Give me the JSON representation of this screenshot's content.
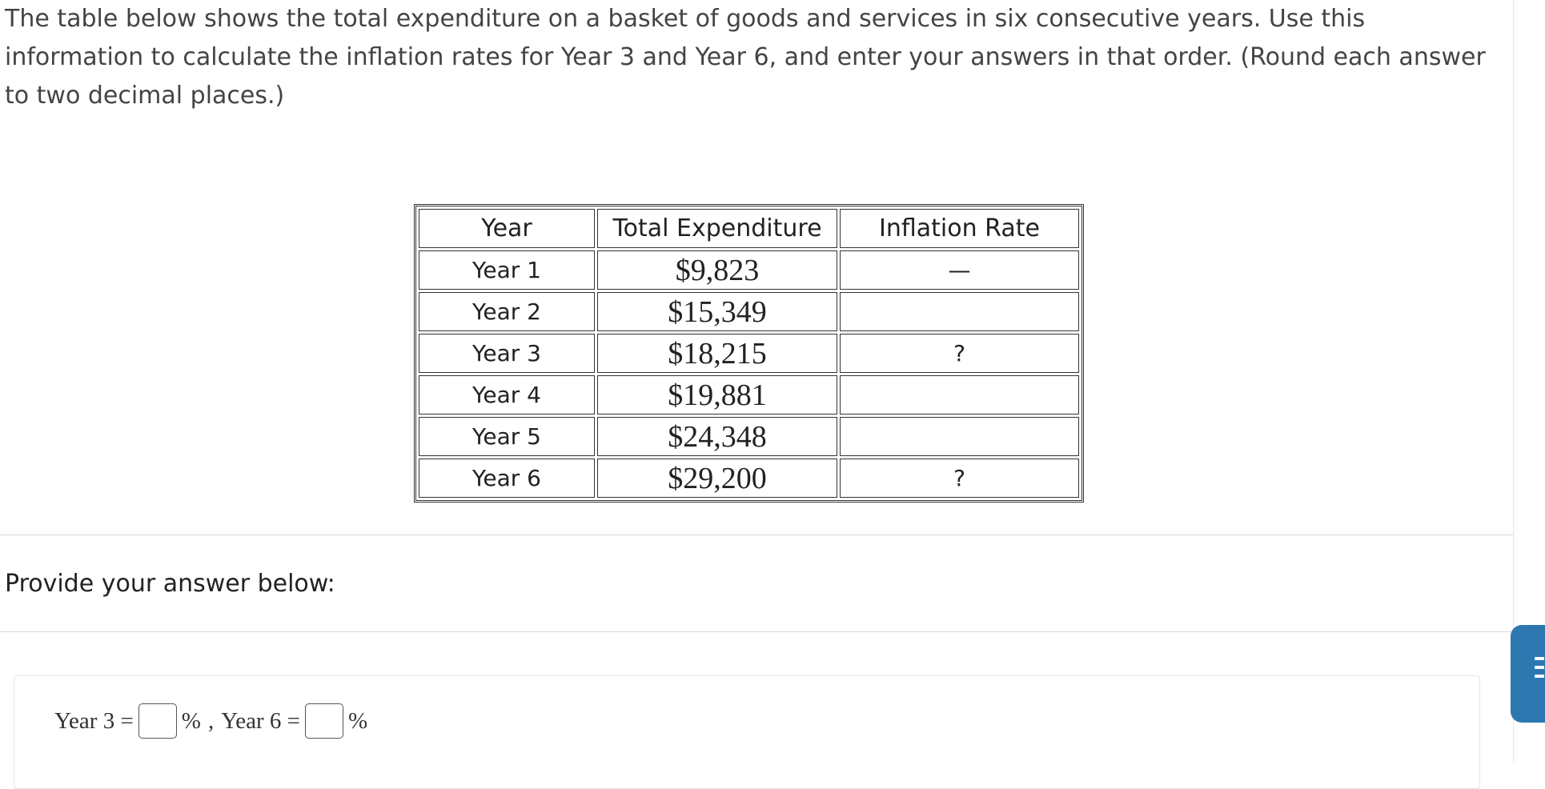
{
  "question": {
    "text": "The table below shows the total expenditure on a basket of goods and services in six consecutive years. Use this information to calculate the inflation rates for Year 3 and Year 6, and enter your answers in that order. (Round each answer to two decimal places.)"
  },
  "table": {
    "headers": [
      "Year",
      "Total Expenditure",
      "Inflation Rate"
    ],
    "rows": [
      {
        "year": "Year 1",
        "expenditure": "$9,823",
        "rate": "—"
      },
      {
        "year": "Year 2",
        "expenditure": "$15,349",
        "rate": ""
      },
      {
        "year": "Year 3",
        "expenditure": "$18,215",
        "rate": "?"
      },
      {
        "year": "Year 4",
        "expenditure": "$19,881",
        "rate": ""
      },
      {
        "year": "Year 5",
        "expenditure": "$24,348",
        "rate": ""
      },
      {
        "year": "Year 6",
        "expenditure": "$29,200",
        "rate": "?"
      }
    ]
  },
  "answer": {
    "heading": "Provide your answer below:",
    "label_year3": "Year 3 =",
    "unit1": "%",
    "separator": ",",
    "label_year6": "Year 6 =",
    "unit2": "%",
    "year3_value": "",
    "year6_value": ""
  },
  "side_tab": {
    "icon": "menu-icon",
    "color": "#2d77b0"
  }
}
